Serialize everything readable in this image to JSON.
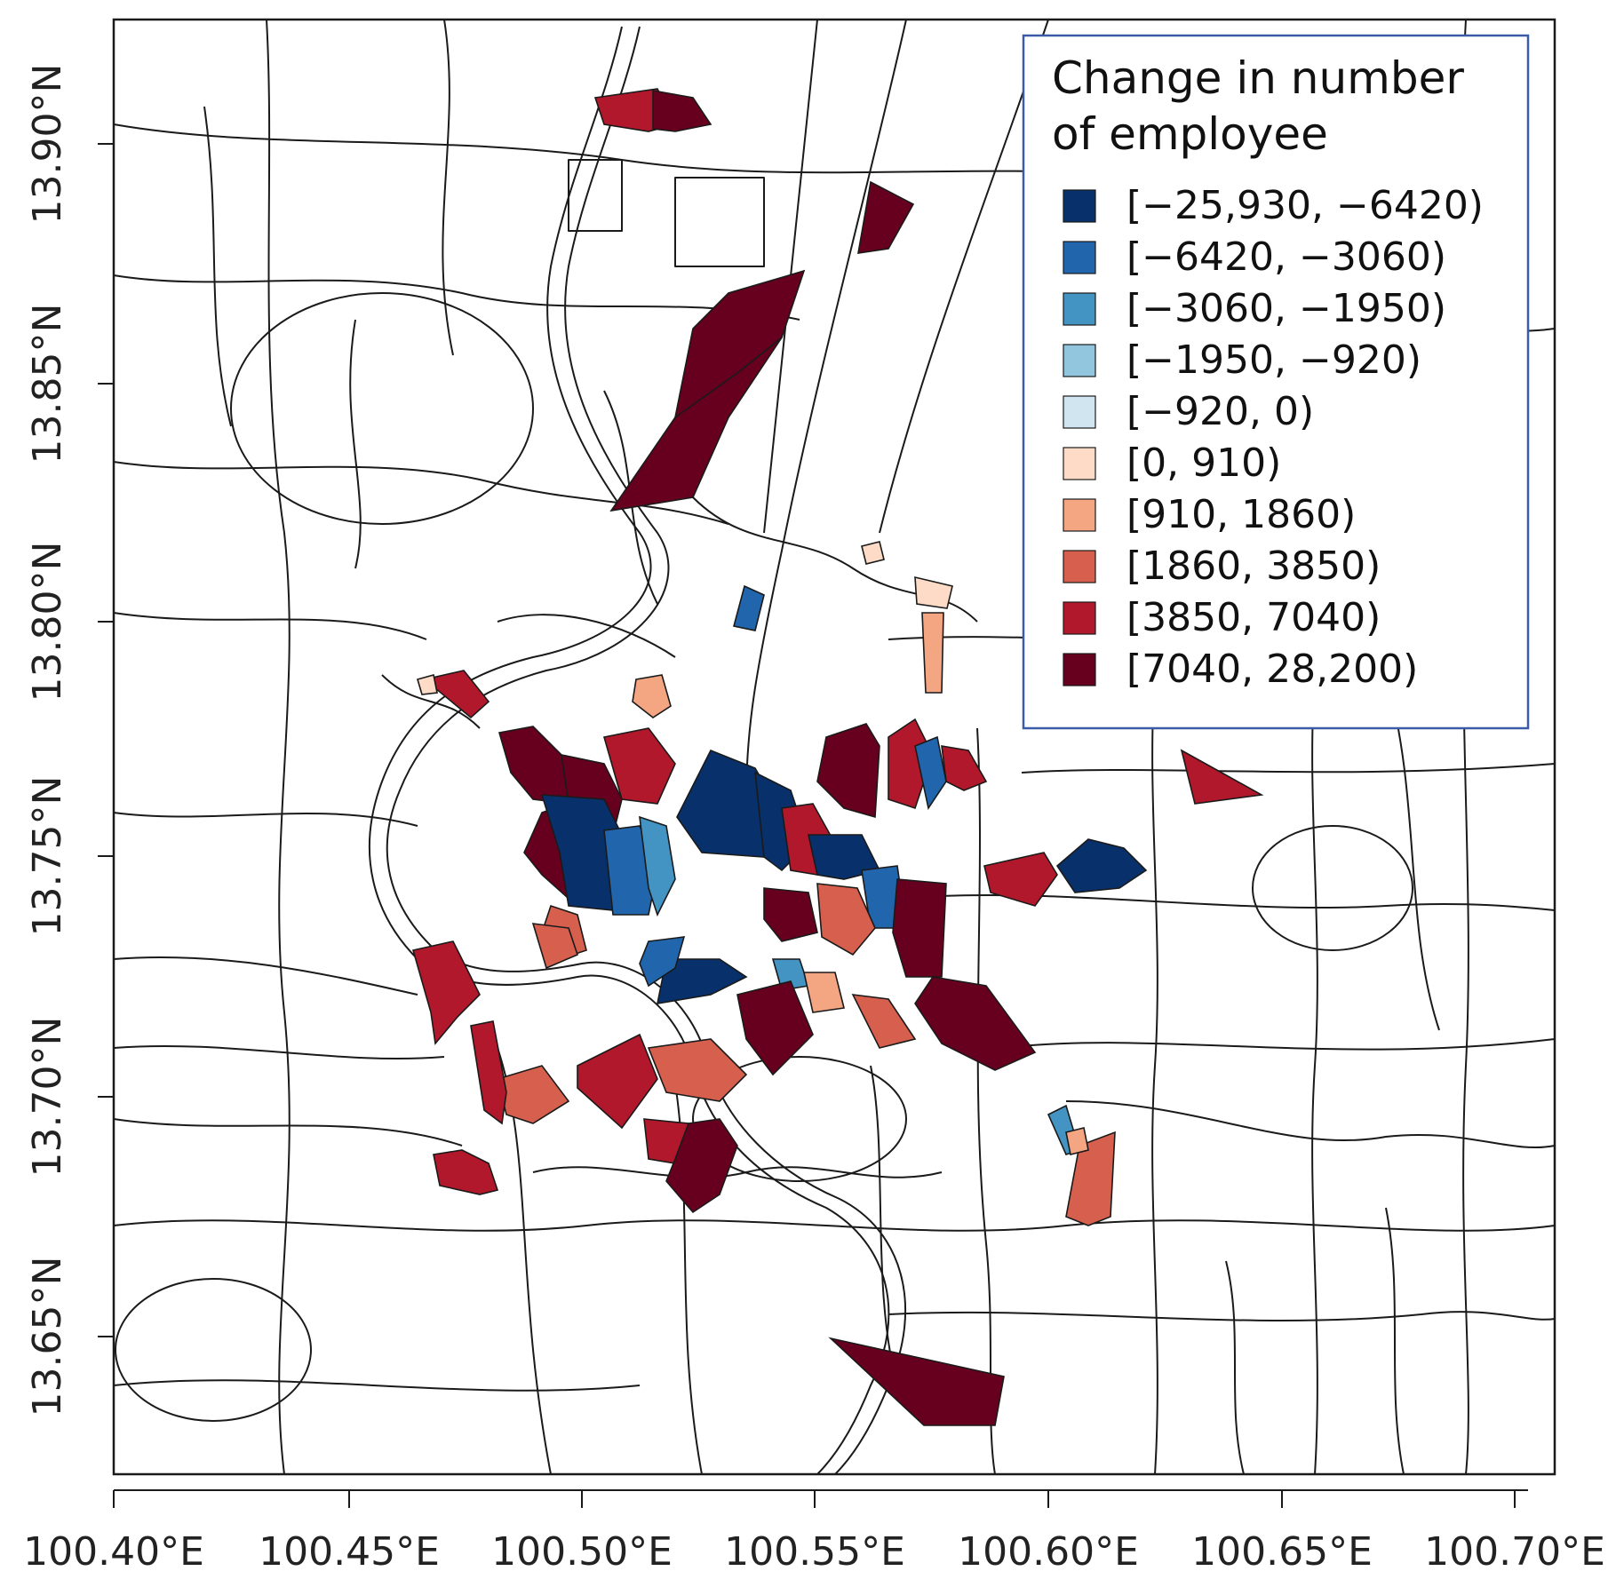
{
  "map": {
    "legend": {
      "title_lines": [
        "Change in number",
        "of employee"
      ],
      "classes": [
        {
          "label": "[−25,930, −6420)",
          "color": "#08306b"
        },
        {
          "label": "[−6420, −3060)",
          "color": "#2166ac"
        },
        {
          "label": "[−3060, −1950)",
          "color": "#4393c3"
        },
        {
          "label": "[−1950, −920)",
          "color": "#92c5de"
        },
        {
          "label": "[−920, 0)",
          "color": "#d1e5f0"
        },
        {
          "label": "[0, 910)",
          "color": "#fddbc7"
        },
        {
          "label": "[910, 1860)",
          "color": "#f4a582"
        },
        {
          "label": "[1860, 3850)",
          "color": "#d6604d"
        },
        {
          "label": "[3850, 7040)",
          "color": "#b2182b"
        },
        {
          "label": "[7040, 28,200)",
          "color": "#67001f"
        }
      ]
    },
    "axes": {
      "x_ticks": [
        "100.40°E",
        "100.45°E",
        "100.50°E",
        "100.55°E",
        "100.60°E",
        "100.65°E",
        "100.70°E"
      ],
      "y_ticks": [
        "13.65°N",
        "13.70°N",
        "13.75°N",
        "13.80°N",
        "13.85°N",
        "13.90°N"
      ]
    },
    "zones": [
      {
        "id": "north-1",
        "lon": 100.507,
        "lat": 13.909,
        "class": 8
      },
      {
        "id": "north-2",
        "lon": 100.516,
        "lat": 13.906,
        "class": 9
      },
      {
        "id": "north-3",
        "lon": 100.562,
        "lat": 13.882,
        "class": 9
      },
      {
        "id": "north-4",
        "lon": 100.535,
        "lat": 13.852,
        "class": 9
      },
      {
        "id": "north-5",
        "lon": 100.537,
        "lat": 13.865,
        "class": 9
      },
      {
        "id": "mid-1",
        "lon": 100.535,
        "lat": 13.801,
        "class": 1
      },
      {
        "id": "west-1",
        "lon": 100.474,
        "lat": 13.786,
        "class": 8
      },
      {
        "id": "west-2",
        "lon": 100.515,
        "lat": 13.78,
        "class": 6
      },
      {
        "id": "west-3",
        "lon": 100.487,
        "lat": 13.771,
        "class": 9
      },
      {
        "id": "west-4",
        "lon": 100.502,
        "lat": 13.765,
        "class": 9
      },
      {
        "id": "west-5",
        "lon": 100.51,
        "lat": 13.77,
        "class": 8
      },
      {
        "id": "old-1",
        "lon": 100.496,
        "lat": 13.748,
        "class": 9
      },
      {
        "id": "old-2",
        "lon": 100.503,
        "lat": 13.752,
        "class": 0
      },
      {
        "id": "old-3",
        "lon": 100.513,
        "lat": 13.747,
        "class": 1
      },
      {
        "id": "old-4",
        "lon": 100.517,
        "lat": 13.751,
        "class": 2
      },
      {
        "id": "cbd-1",
        "lon": 100.53,
        "lat": 13.763,
        "class": 0
      },
      {
        "id": "cbd-2",
        "lon": 100.541,
        "lat": 13.758,
        "class": 0
      },
      {
        "id": "cbd-3",
        "lon": 100.548,
        "lat": 13.753,
        "class": 8
      },
      {
        "id": "cbd-4",
        "lon": 100.557,
        "lat": 13.752,
        "class": 0
      },
      {
        "id": "cbd-5",
        "lon": 100.557,
        "lat": 13.766,
        "class": 9
      },
      {
        "id": "cbd-6",
        "lon": 100.566,
        "lat": 13.767,
        "class": 8
      },
      {
        "id": "cbd-7",
        "lon": 100.572,
        "lat": 13.77,
        "class": 1
      },
      {
        "id": "cbd-8",
        "lon": 100.581,
        "lat": 13.77,
        "class": 8
      },
      {
        "id": "cbd-9",
        "lon": 100.563,
        "lat": 13.748,
        "class": 1
      },
      {
        "id": "cbd-10",
        "lon": 100.57,
        "lat": 13.74,
        "class": 9
      },
      {
        "id": "cbd-11",
        "lon": 100.545,
        "lat": 13.742,
        "class": 9
      },
      {
        "id": "cbd-12",
        "lon": 100.555,
        "lat": 13.74,
        "class": 7
      },
      {
        "id": "east-1",
        "lon": 100.603,
        "lat": 13.746,
        "class": 8
      },
      {
        "id": "east-2",
        "lon": 100.617,
        "lat": 13.751,
        "class": 0
      },
      {
        "id": "east-3",
        "lon": 100.636,
        "lat": 13.765,
        "class": 8
      },
      {
        "id": "south-1",
        "lon": 100.527,
        "lat": 13.724,
        "class": 0
      },
      {
        "id": "south-2",
        "lon": 100.515,
        "lat": 13.723,
        "class": 1
      },
      {
        "id": "south-3",
        "lon": 100.508,
        "lat": 13.733,
        "class": 7
      },
      {
        "id": "south-4",
        "lon": 100.496,
        "lat": 13.734,
        "class": 7
      },
      {
        "id": "south-5",
        "lon": 100.54,
        "lat": 13.725,
        "class": 2
      },
      {
        "id": "south-6",
        "lon": 100.548,
        "lat": 13.721,
        "class": 6
      },
      {
        "id": "south-7",
        "lon": 100.578,
        "lat": 13.718,
        "class": 9
      },
      {
        "id": "south-8",
        "lon": 100.541,
        "lat": 13.711,
        "class": 9
      },
      {
        "id": "south-9",
        "lon": 100.56,
        "lat": 13.712,
        "class": 7
      },
      {
        "id": "south-10",
        "lon": 100.525,
        "lat": 13.704,
        "class": 7
      },
      {
        "id": "south-11",
        "lon": 100.513,
        "lat": 13.707,
        "class": 8
      },
      {
        "id": "south-12",
        "lon": 100.492,
        "lat": 13.702,
        "class": 7
      },
      {
        "id": "sw-1",
        "lon": 100.471,
        "lat": 13.731,
        "class": 8
      },
      {
        "id": "sw-2",
        "lon": 100.479,
        "lat": 13.705,
        "class": 8
      },
      {
        "id": "sw-3",
        "lon": 100.474,
        "lat": 13.678,
        "class": 8
      },
      {
        "id": "sw-4",
        "lon": 100.52,
        "lat": 13.686,
        "class": 8
      },
      {
        "id": "sw-5",
        "lon": 100.528,
        "lat": 13.68,
        "class": 9
      },
      {
        "id": "se-1",
        "lon": 100.607,
        "lat": 13.693,
        "class": 2
      },
      {
        "id": "se-2",
        "lon": 100.613,
        "lat": 13.678,
        "class": 7
      },
      {
        "id": "se-3",
        "lon": 100.611,
        "lat": 13.686,
        "class": 6
      },
      {
        "id": "far-south-1",
        "lon": 100.565,
        "lat": 13.639,
        "class": 9
      },
      {
        "id": "chain-1",
        "lon": 100.572,
        "lat": 13.787,
        "class": 6
      },
      {
        "id": "chain-2",
        "lon": 100.573,
        "lat": 13.807,
        "class": 5
      },
      {
        "id": "chain-3",
        "lon": 100.566,
        "lat": 13.814,
        "class": 5
      },
      {
        "id": "chain-4",
        "lon": 100.519,
        "lat": 13.776,
        "class": 5
      }
    ]
  }
}
